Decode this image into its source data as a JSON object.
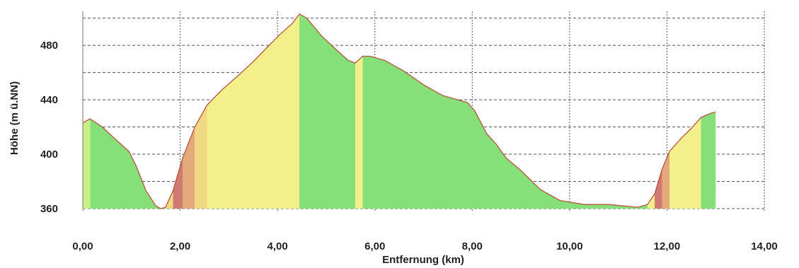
{
  "chart_data": {
    "type": "area",
    "title": "",
    "xlabel": "Entfernung (km)",
    "ylabel": "Höhe (m ü.NN)",
    "xlim": [
      0,
      14
    ],
    "ylim": [
      360,
      505
    ],
    "x_ticks": [
      0,
      2,
      4,
      6,
      8,
      10,
      12,
      14
    ],
    "x_tick_labels": [
      "0,00",
      "2,00",
      "4,00",
      "6,00",
      "8,00",
      "10,00",
      "12,00",
      "14,00"
    ],
    "y_ticks": [
      360,
      400,
      440,
      480
    ],
    "y_tick_labels": [
      "360",
      "400",
      "440",
      "480"
    ],
    "grid": true,
    "series": [
      {
        "x": [
          0.0,
          0.15,
          0.4,
          0.7,
          0.95,
          1.1,
          1.3,
          1.5,
          1.6,
          1.7,
          1.85,
          2.05,
          2.3,
          2.55,
          2.85,
          3.2,
          3.5,
          3.8,
          4.05,
          4.3,
          4.45,
          4.6,
          4.9,
          5.2,
          5.45,
          5.6,
          5.75,
          5.9,
          6.2,
          6.6,
          7.0,
          7.4,
          7.9,
          8.05,
          8.3,
          8.5,
          8.7,
          9.0,
          9.4,
          9.8,
          10.3,
          10.8,
          11.1,
          11.4,
          11.6,
          11.75,
          11.9,
          12.05,
          12.3,
          12.5,
          12.7,
          12.9,
          13.0
        ],
        "y": [
          423,
          426,
          420,
          410,
          402,
          391,
          373,
          362,
          360,
          361,
          373,
          397,
          420,
          436,
          447,
          458,
          468,
          479,
          488,
          496,
          503,
          500,
          487,
          477,
          469,
          467,
          472,
          472,
          469,
          461,
          451,
          443,
          438,
          432,
          415,
          407,
          397,
          388,
          374,
          366,
          363,
          363,
          362,
          361,
          363,
          371,
          389,
          402,
          412,
          419,
          427,
          430,
          431
        ]
      }
    ]
  }
}
